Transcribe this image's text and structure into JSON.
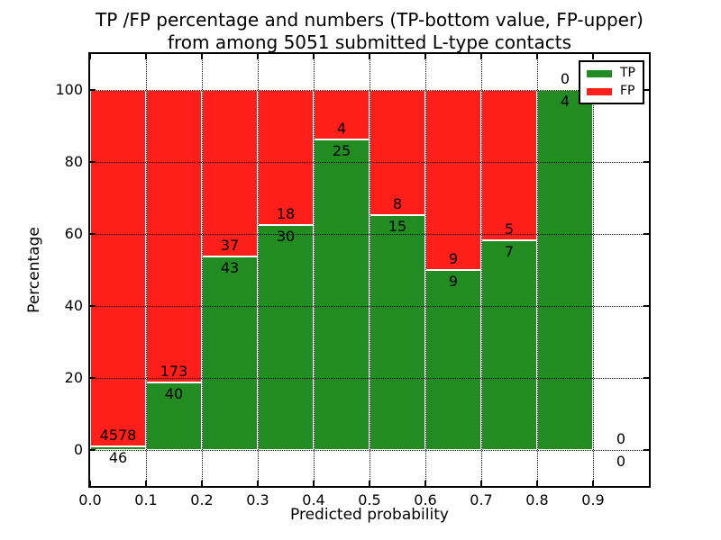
{
  "chart_data": {
    "type": "bar",
    "subtype": "stacked-percentage",
    "title_line1": "TP /FP percentage and numbers (TP-bottom value, FP-upper)",
    "title_line2": "from among 5051 submitted L-type contacts",
    "xlabel": "Predicted probability",
    "ylabel": "Percentage",
    "x_ticks": [
      "0.0",
      "0.1",
      "0.2",
      "0.3",
      "0.4",
      "0.5",
      "0.6",
      "0.7",
      "0.8",
      "0.9"
    ],
    "y_ticks": [
      0,
      20,
      40,
      60,
      80,
      100
    ],
    "xlim": [
      0.0,
      1.0
    ],
    "ylim": [
      -10,
      110
    ],
    "bin_width": 0.1,
    "grid": true,
    "legend_position": "upper right",
    "legend": [
      {
        "label": "TP",
        "color": "#228b22"
      },
      {
        "label": "FP",
        "color": "#ff1f1a"
      }
    ],
    "bins": [
      {
        "x_start": 0.0,
        "x_end": 0.1,
        "tp": 46,
        "fp": 4578
      },
      {
        "x_start": 0.1,
        "x_end": 0.2,
        "tp": 40,
        "fp": 173
      },
      {
        "x_start": 0.2,
        "x_end": 0.3,
        "tp": 43,
        "fp": 37
      },
      {
        "x_start": 0.3,
        "x_end": 0.4,
        "tp": 30,
        "fp": 18
      },
      {
        "x_start": 0.4,
        "x_end": 0.5,
        "tp": 25,
        "fp": 4
      },
      {
        "x_start": 0.5,
        "x_end": 0.6,
        "tp": 15,
        "fp": 8
      },
      {
        "x_start": 0.6,
        "x_end": 0.7,
        "tp": 9,
        "fp": 9
      },
      {
        "x_start": 0.7,
        "x_end": 0.8,
        "tp": 7,
        "fp": 5
      },
      {
        "x_start": 0.8,
        "x_end": 0.9,
        "tp": 4,
        "fp": 0
      },
      {
        "x_start": 0.9,
        "x_end": 1.0,
        "tp": 0,
        "fp": 0
      }
    ]
  },
  "colors": {
    "tp": "#228b22",
    "fp": "#ff1f1a",
    "grid": "#000000",
    "frame": "#000000",
    "background": "#ffffff"
  }
}
